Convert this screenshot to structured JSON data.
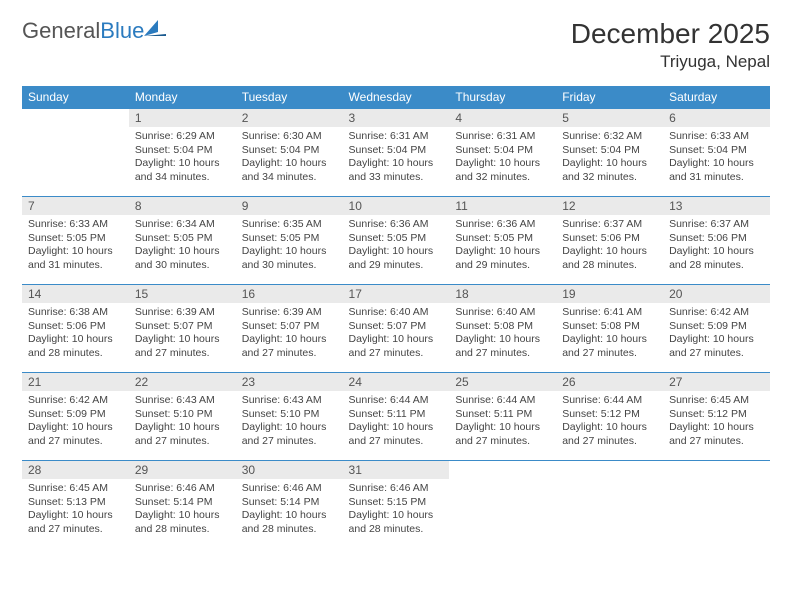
{
  "logo": {
    "text1": "General",
    "text2": "Blue"
  },
  "header": {
    "month_title": "December 2025",
    "location": "Triyuga, Nepal"
  },
  "day_names": [
    "Sunday",
    "Monday",
    "Tuesday",
    "Wednesday",
    "Thursday",
    "Friday",
    "Saturday"
  ],
  "colors": {
    "header_bg": "#3b8bc8",
    "daynum_bg": "#eaeaea",
    "border": "#3b8bc8"
  },
  "weeks": [
    [
      null,
      {
        "n": "1",
        "sr": "6:29 AM",
        "ss": "5:04 PM",
        "dl": "10 hours and 34 minutes."
      },
      {
        "n": "2",
        "sr": "6:30 AM",
        "ss": "5:04 PM",
        "dl": "10 hours and 34 minutes."
      },
      {
        "n": "3",
        "sr": "6:31 AM",
        "ss": "5:04 PM",
        "dl": "10 hours and 33 minutes."
      },
      {
        "n": "4",
        "sr": "6:31 AM",
        "ss": "5:04 PM",
        "dl": "10 hours and 32 minutes."
      },
      {
        "n": "5",
        "sr": "6:32 AM",
        "ss": "5:04 PM",
        "dl": "10 hours and 32 minutes."
      },
      {
        "n": "6",
        "sr": "6:33 AM",
        "ss": "5:04 PM",
        "dl": "10 hours and 31 minutes."
      }
    ],
    [
      {
        "n": "7",
        "sr": "6:33 AM",
        "ss": "5:05 PM",
        "dl": "10 hours and 31 minutes."
      },
      {
        "n": "8",
        "sr": "6:34 AM",
        "ss": "5:05 PM",
        "dl": "10 hours and 30 minutes."
      },
      {
        "n": "9",
        "sr": "6:35 AM",
        "ss": "5:05 PM",
        "dl": "10 hours and 30 minutes."
      },
      {
        "n": "10",
        "sr": "6:36 AM",
        "ss": "5:05 PM",
        "dl": "10 hours and 29 minutes."
      },
      {
        "n": "11",
        "sr": "6:36 AM",
        "ss": "5:05 PM",
        "dl": "10 hours and 29 minutes."
      },
      {
        "n": "12",
        "sr": "6:37 AM",
        "ss": "5:06 PM",
        "dl": "10 hours and 28 minutes."
      },
      {
        "n": "13",
        "sr": "6:37 AM",
        "ss": "5:06 PM",
        "dl": "10 hours and 28 minutes."
      }
    ],
    [
      {
        "n": "14",
        "sr": "6:38 AM",
        "ss": "5:06 PM",
        "dl": "10 hours and 28 minutes."
      },
      {
        "n": "15",
        "sr": "6:39 AM",
        "ss": "5:07 PM",
        "dl": "10 hours and 27 minutes."
      },
      {
        "n": "16",
        "sr": "6:39 AM",
        "ss": "5:07 PM",
        "dl": "10 hours and 27 minutes."
      },
      {
        "n": "17",
        "sr": "6:40 AM",
        "ss": "5:07 PM",
        "dl": "10 hours and 27 minutes."
      },
      {
        "n": "18",
        "sr": "6:40 AM",
        "ss": "5:08 PM",
        "dl": "10 hours and 27 minutes."
      },
      {
        "n": "19",
        "sr": "6:41 AM",
        "ss": "5:08 PM",
        "dl": "10 hours and 27 minutes."
      },
      {
        "n": "20",
        "sr": "6:42 AM",
        "ss": "5:09 PM",
        "dl": "10 hours and 27 minutes."
      }
    ],
    [
      {
        "n": "21",
        "sr": "6:42 AM",
        "ss": "5:09 PM",
        "dl": "10 hours and 27 minutes."
      },
      {
        "n": "22",
        "sr": "6:43 AM",
        "ss": "5:10 PM",
        "dl": "10 hours and 27 minutes."
      },
      {
        "n": "23",
        "sr": "6:43 AM",
        "ss": "5:10 PM",
        "dl": "10 hours and 27 minutes."
      },
      {
        "n": "24",
        "sr": "6:44 AM",
        "ss": "5:11 PM",
        "dl": "10 hours and 27 minutes."
      },
      {
        "n": "25",
        "sr": "6:44 AM",
        "ss": "5:11 PM",
        "dl": "10 hours and 27 minutes."
      },
      {
        "n": "26",
        "sr": "6:44 AM",
        "ss": "5:12 PM",
        "dl": "10 hours and 27 minutes."
      },
      {
        "n": "27",
        "sr": "6:45 AM",
        "ss": "5:12 PM",
        "dl": "10 hours and 27 minutes."
      }
    ],
    [
      {
        "n": "28",
        "sr": "6:45 AM",
        "ss": "5:13 PM",
        "dl": "10 hours and 27 minutes."
      },
      {
        "n": "29",
        "sr": "6:46 AM",
        "ss": "5:14 PM",
        "dl": "10 hours and 28 minutes."
      },
      {
        "n": "30",
        "sr": "6:46 AM",
        "ss": "5:14 PM",
        "dl": "10 hours and 28 minutes."
      },
      {
        "n": "31",
        "sr": "6:46 AM",
        "ss": "5:15 PM",
        "dl": "10 hours and 28 minutes."
      },
      null,
      null,
      null
    ]
  ],
  "labels": {
    "sunrise": "Sunrise:",
    "sunset": "Sunset:",
    "daylight": "Daylight:"
  }
}
